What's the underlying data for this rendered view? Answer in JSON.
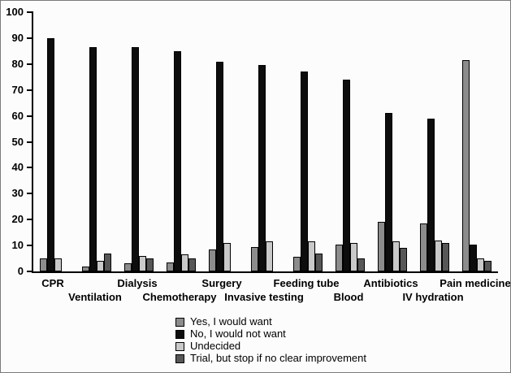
{
  "chart_data": {
    "type": "bar",
    "title": "",
    "xlabel": "",
    "ylabel": "",
    "ylim": [
      0,
      100
    ],
    "yticks": [
      0,
      10,
      20,
      30,
      40,
      50,
      60,
      70,
      80,
      90,
      100
    ],
    "grid": false,
    "legend_position": "bottom",
    "categories": [
      "CPR",
      "Ventilation",
      "Dialysis",
      "Chemotherapy",
      "Surgery",
      "Invasive testing",
      "Feeding tube",
      "Blood",
      "Antibiotics",
      "IV hydration",
      "Pain medicine"
    ],
    "series": [
      {
        "name": "Yes, I would want",
        "color": "#8c8c8c",
        "values": [
          5,
          2,
          3,
          3.5,
          8.5,
          9.5,
          5.5,
          10.5,
          19,
          18.5,
          81.5
        ]
      },
      {
        "name": "No, I would not want",
        "color": "#0d0d0d",
        "values": [
          90,
          86.5,
          86.5,
          85,
          81,
          79.5,
          77,
          74,
          61,
          59,
          10.5
        ]
      },
      {
        "name": "Undecided",
        "color": "#c9c9c9",
        "values": [
          5,
          4,
          6,
          6.5,
          11,
          11.5,
          11.5,
          11,
          11.5,
          12,
          5
        ]
      },
      {
        "name": "Trial, but stop if no clear improvement",
        "color": "#575757",
        "values": [
          0,
          7,
          5,
          5,
          0,
          0,
          7,
          5,
          9,
          11,
          4
        ]
      }
    ]
  }
}
